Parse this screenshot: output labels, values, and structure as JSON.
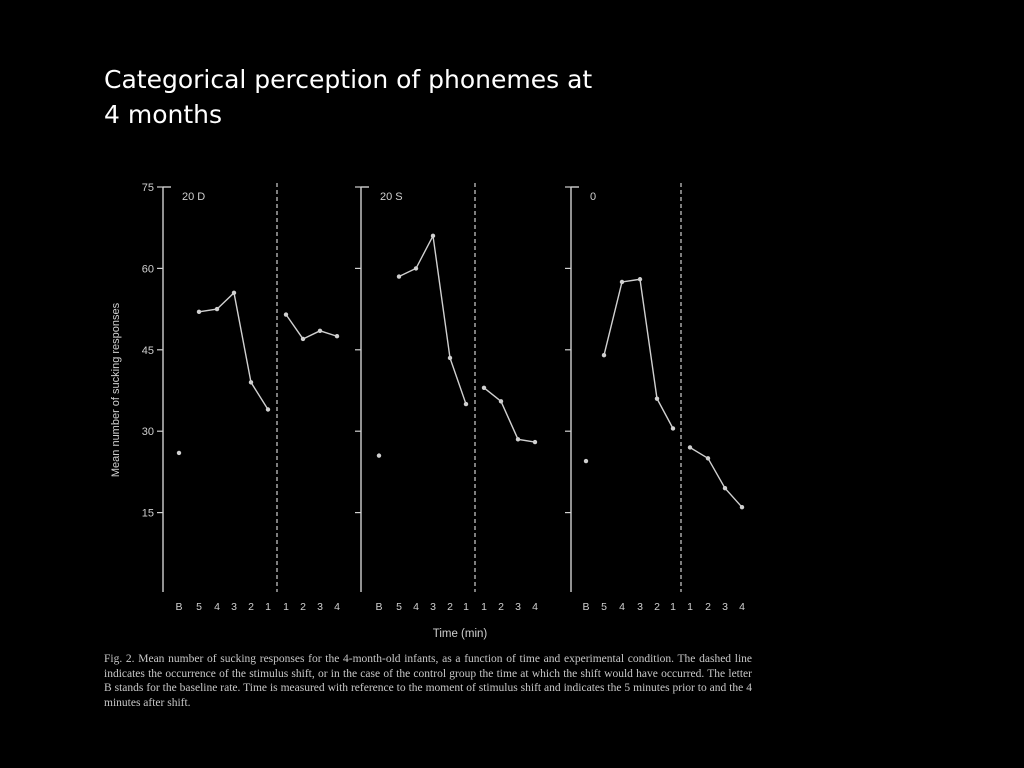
{
  "slide": {
    "title_line1": "Categorical perception of phonemes at",
    "title_line2": "4 months"
  },
  "colors": {
    "background": "#000000",
    "title": "#ffffff",
    "figure": "#d0d0d0"
  },
  "chart_data": {
    "type": "line",
    "ylabel": "Mean number of sucking responses",
    "xlabel": "Time (min)",
    "ylim": [
      0,
      75
    ],
    "yticks": [
      15,
      30,
      45,
      60,
      75
    ],
    "x_categories": [
      "B",
      "5",
      "4",
      "3",
      "2",
      "1",
      "1",
      "2",
      "3",
      "4"
    ],
    "grid": false,
    "panels": [
      {
        "label": "20 D",
        "baseline": 26,
        "before": [
          52,
          52.5,
          55.5,
          39,
          34
        ],
        "after": [
          51.5,
          47,
          48.5,
          47.5
        ]
      },
      {
        "label": "20 S",
        "baseline": 25.5,
        "before": [
          58.5,
          60,
          66,
          43.5,
          35
        ],
        "after": [
          38,
          35.5,
          28.5,
          28
        ]
      },
      {
        "label": "0",
        "baseline": 24.5,
        "before": [
          44,
          57.5,
          58,
          36,
          30.5
        ],
        "after": [
          27,
          25,
          19.5,
          16
        ]
      }
    ]
  },
  "caption": {
    "text": "Fig. 2. Mean number of sucking responses for the 4-month-old infants, as a function of time and experimental condition. The dashed line indicates the occurrence of the stimulus shift, or in the case of the control group the time at which the shift would have occurred. The letter B stands for the baseline rate. Time is measured with reference to the moment of stimulus shift and indicates the 5 minutes prior to and the 4 minutes after shift."
  }
}
